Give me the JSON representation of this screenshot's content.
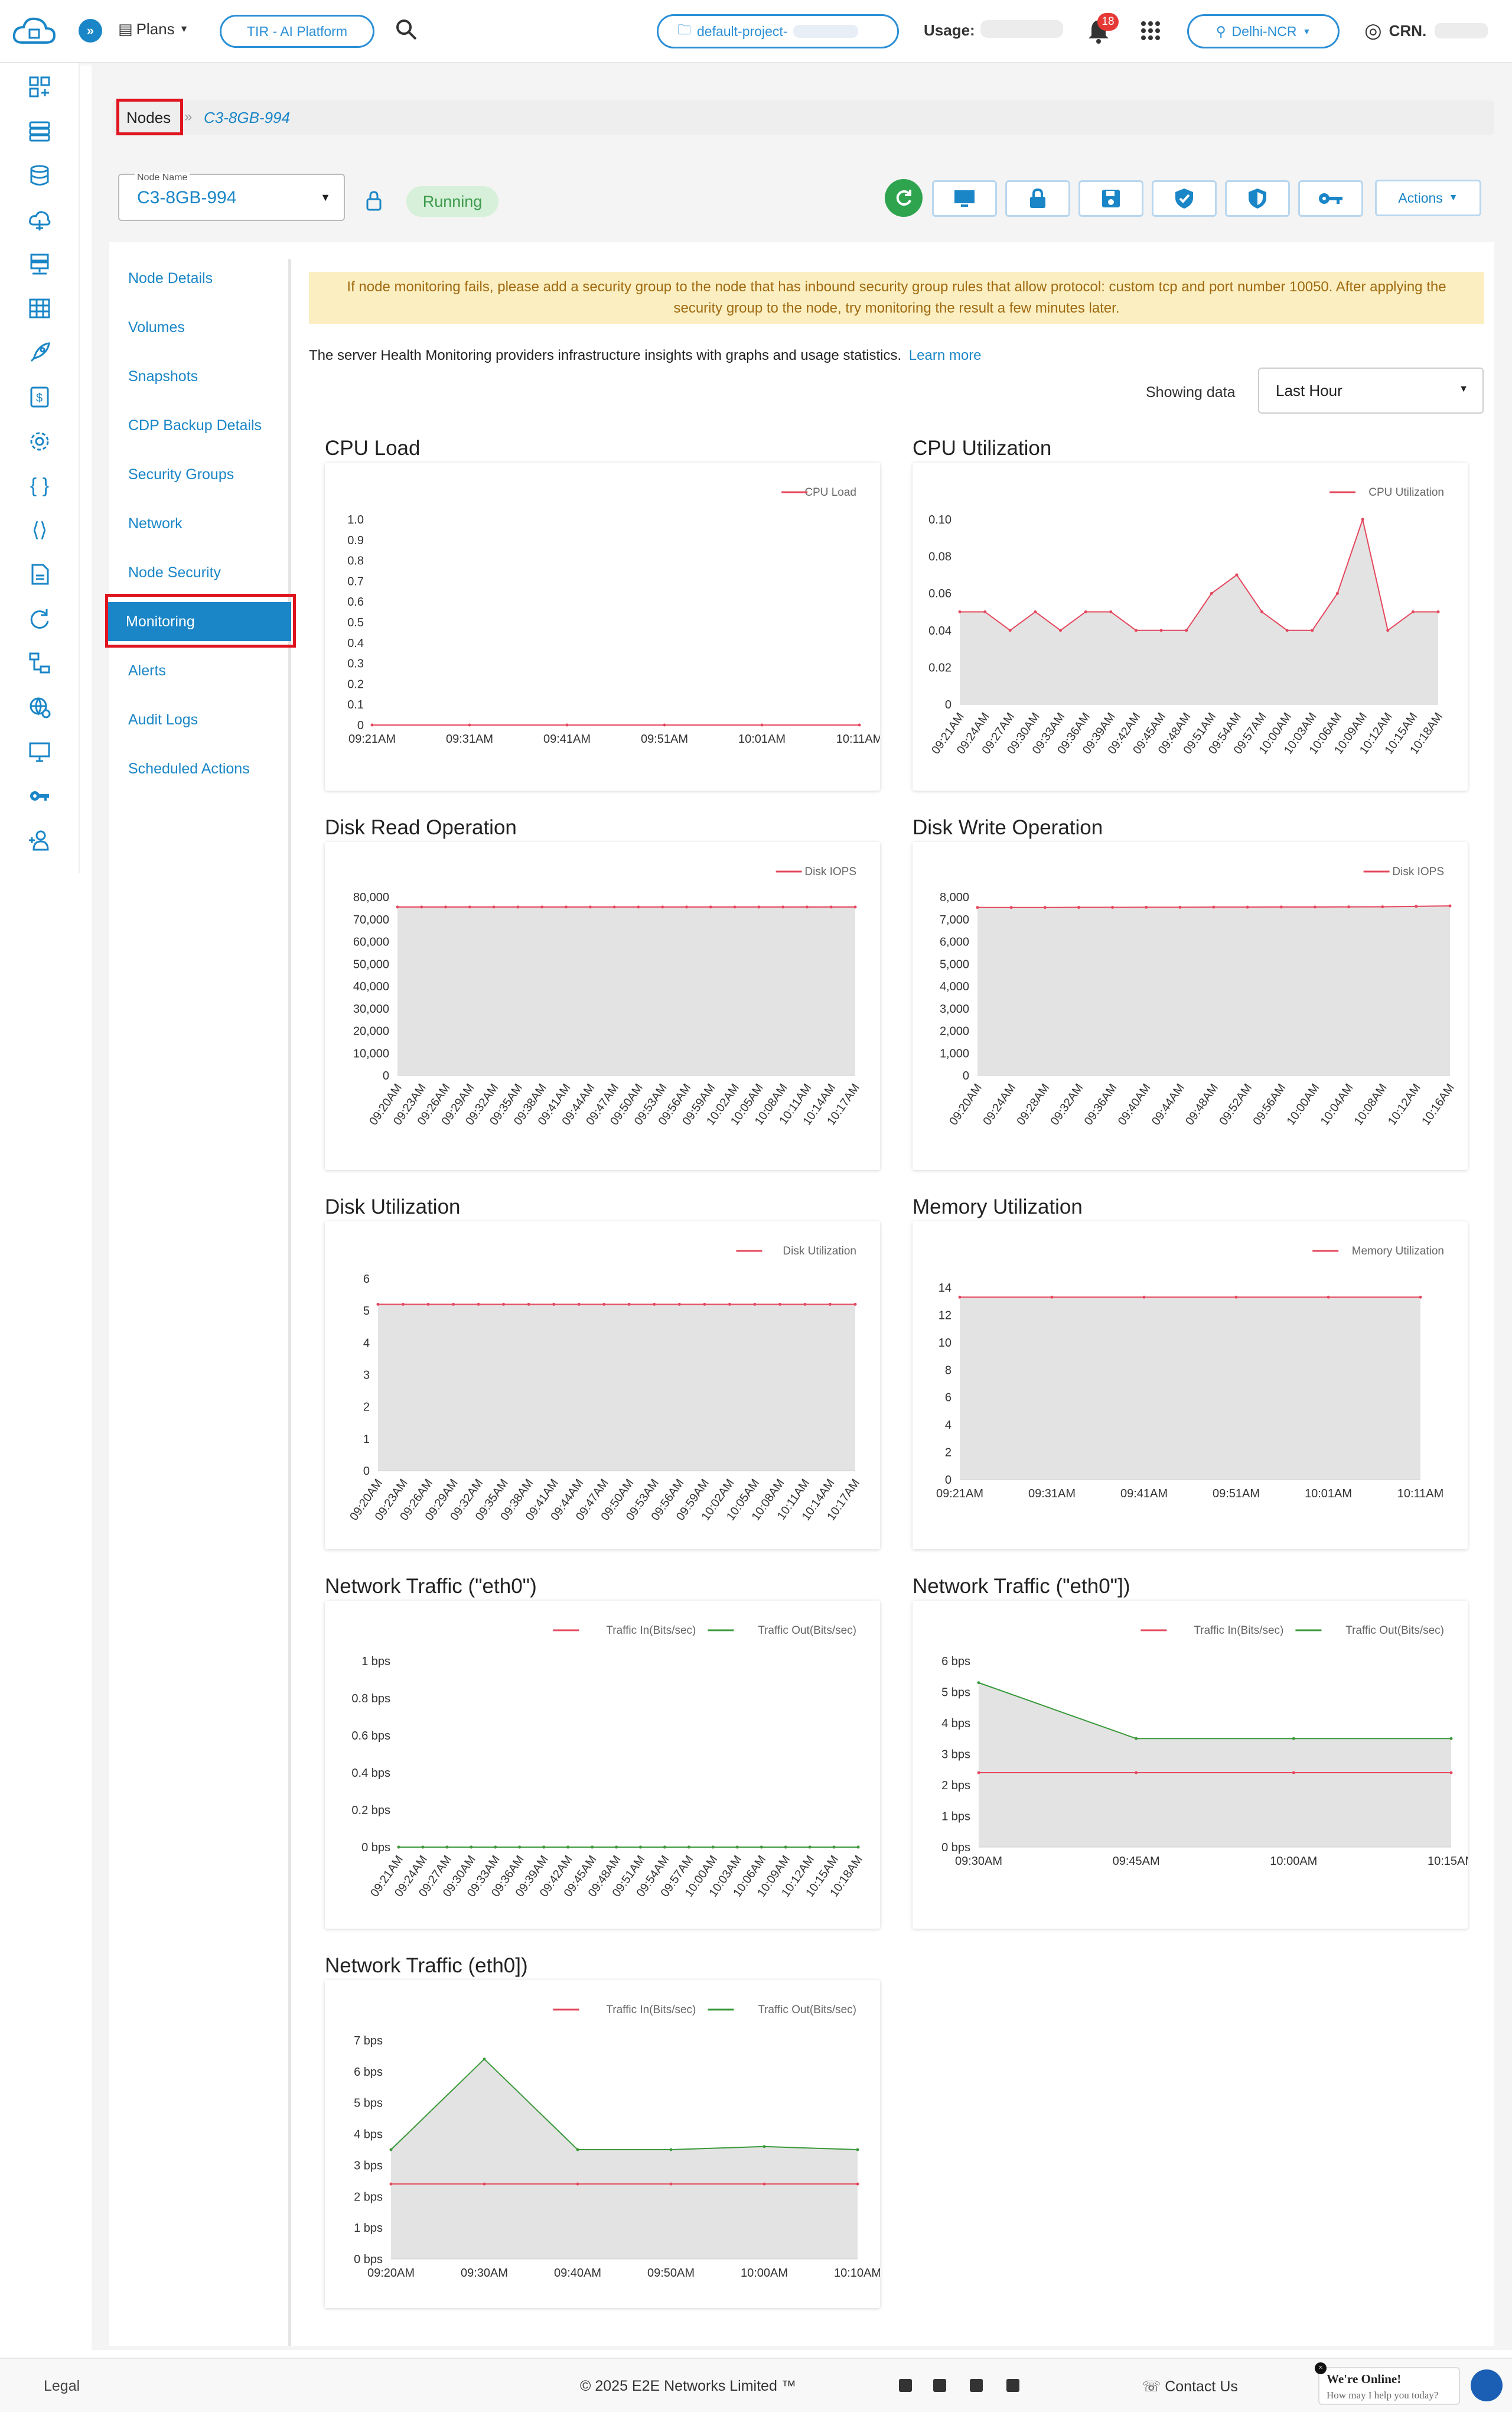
{
  "header": {
    "plans_label": "Plans",
    "tir_label": "TIR - AI Platform",
    "project_label": "default-project-",
    "usage_label": "Usage:",
    "notification_count": "18",
    "region_label": "Delhi-NCR",
    "account_label": "CRN."
  },
  "breadcrumb": {
    "root": "Nodes",
    "separator": "»",
    "current": "C3-8GB-994"
  },
  "node": {
    "field_label": "Node Name",
    "name": "C3-8GB-994",
    "status": "Running",
    "actions_label": "Actions"
  },
  "nav": {
    "items": [
      {
        "label": "Node Details"
      },
      {
        "label": "Volumes"
      },
      {
        "label": "Snapshots"
      },
      {
        "label": "CDP Backup Details"
      },
      {
        "label": "Security Groups"
      },
      {
        "label": "Network"
      },
      {
        "label": "Node Security"
      },
      {
        "label": "Monitoring"
      },
      {
        "label": "Alerts"
      },
      {
        "label": "Audit Logs"
      },
      {
        "label": "Scheduled Actions"
      }
    ],
    "active": "Monitoring"
  },
  "monitoring": {
    "warning": "If node monitoring fails, please add a security group to the node that has inbound security group rules that allow protocol: custom tcp and port number 10050. After applying the security group to the node, try monitoring the result a few minutes later.",
    "info_text": "The server Health Monitoring providers infrastructure insights with graphs and usage statistics.",
    "learn_more": "Learn more",
    "showing_label": "Showing data",
    "range_value": "Last Hour"
  },
  "colors": {
    "accent": "#1a86c7",
    "status_green": "#3c9a4c",
    "series_in": "#e5485e",
    "series_out": "#3a9a3a",
    "area_fill": "#e3e3e3",
    "warn_bg": "#fbefc2"
  },
  "chart_data": [
    {
      "title": "CPU Load",
      "type": "line",
      "legend": [
        "CPU Load"
      ],
      "x": [
        "09:21AM",
        "09:31AM",
        "09:41AM",
        "09:51AM",
        "10:01AM",
        "10:11AM"
      ],
      "yticks": [
        "1.0",
        "0.9",
        "0.8",
        "0.7",
        "0.6",
        "0.5",
        "0.4",
        "0.3",
        "0.2",
        "0.1",
        "0"
      ],
      "ylim": [
        0,
        1
      ],
      "series": [
        {
          "name": "CPU Load",
          "values": [
            0,
            0,
            0,
            0,
            0,
            0
          ]
        }
      ]
    },
    {
      "title": "CPU Utilization",
      "type": "area",
      "legend": [
        "CPU Utilization"
      ],
      "x": [
        "09:21AM",
        "09:24AM",
        "09:27AM",
        "09:30AM",
        "09:33AM",
        "09:36AM",
        "09:39AM",
        "09:42AM",
        "09:45AM",
        "09:48AM",
        "09:51AM",
        "09:54AM",
        "09:57AM",
        "10:00AM",
        "10:03AM",
        "10:06AM",
        "10:09AM",
        "10:12AM",
        "10:15AM",
        "10:18AM"
      ],
      "yticks": [
        "0.10",
        "0.08",
        "0.06",
        "0.04",
        "0.02",
        "0"
      ],
      "ylim": [
        0,
        0.1
      ],
      "series": [
        {
          "name": "CPU Utilization",
          "values": [
            0.05,
            0.05,
            0.04,
            0.05,
            0.04,
            0.05,
            0.05,
            0.04,
            0.04,
            0.04,
            0.06,
            0.07,
            0.05,
            0.04,
            0.04,
            0.06,
            0.1,
            0.04,
            0.05,
            0.05
          ]
        }
      ]
    },
    {
      "title": "Disk Read Operation",
      "type": "area",
      "legend": [
        "Disk IOPS"
      ],
      "x": [
        "09:20AM",
        "09:23AM",
        "09:26AM",
        "09:29AM",
        "09:32AM",
        "09:35AM",
        "09:38AM",
        "09:41AM",
        "09:44AM",
        "09:47AM",
        "09:50AM",
        "09:53AM",
        "09:56AM",
        "09:59AM",
        "10:02AM",
        "10:05AM",
        "10:08AM",
        "10:11AM",
        "10:14AM",
        "10:17AM"
      ],
      "yticks": [
        "80,000",
        "70,000",
        "60,000",
        "50,000",
        "40,000",
        "30,000",
        "20,000",
        "10,000",
        "0"
      ],
      "ylim": [
        0,
        80000
      ],
      "series": [
        {
          "name": "Disk IOPS",
          "values": [
            75500,
            75500,
            75500,
            75500,
            75500,
            75500,
            75500,
            75500,
            75500,
            75500,
            75500,
            75500,
            75500,
            75500,
            75500,
            75500,
            75500,
            75500,
            75500,
            75500
          ]
        }
      ]
    },
    {
      "title": "Disk Write Operation",
      "type": "area",
      "legend": [
        "Disk IOPS"
      ],
      "x": [
        "09:20AM",
        "09:24AM",
        "09:28AM",
        "09:32AM",
        "09:36AM",
        "09:40AM",
        "09:44AM",
        "09:48AM",
        "09:52AM",
        "09:56AM",
        "10:00AM",
        "10:04AM",
        "10:08AM",
        "10:12AM",
        "10:16AM"
      ],
      "yticks": [
        "8,000",
        "7,000",
        "6,000",
        "5,000",
        "4,000",
        "3,000",
        "2,000",
        "1,000",
        "0"
      ],
      "ylim": [
        0,
        8000
      ],
      "series": [
        {
          "name": "Disk IOPS",
          "values": [
            7530,
            7530,
            7530,
            7535,
            7535,
            7540,
            7540,
            7545,
            7545,
            7550,
            7550,
            7555,
            7560,
            7580,
            7600
          ]
        }
      ]
    },
    {
      "title": "Disk Utilization",
      "type": "area",
      "legend": [
        "Disk Utilization"
      ],
      "x": [
        "09:20AM",
        "09:23AM",
        "09:26AM",
        "09:29AM",
        "09:32AM",
        "09:35AM",
        "09:38AM",
        "09:41AM",
        "09:44AM",
        "09:47AM",
        "09:50AM",
        "09:53AM",
        "09:56AM",
        "09:59AM",
        "10:02AM",
        "10:05AM",
        "10:08AM",
        "10:11AM",
        "10:14AM",
        "10:17AM"
      ],
      "yticks": [
        "6",
        "5",
        "4",
        "3",
        "2",
        "1",
        "0"
      ],
      "ylim": [
        0,
        6
      ],
      "series": [
        {
          "name": "Disk Utilization",
          "values": [
            5.2,
            5.2,
            5.2,
            5.2,
            5.2,
            5.2,
            5.2,
            5.2,
            5.2,
            5.2,
            5.2,
            5.2,
            5.2,
            5.2,
            5.2,
            5.2,
            5.2,
            5.2,
            5.2,
            5.2
          ]
        }
      ]
    },
    {
      "title": "Memory Utilization",
      "type": "area",
      "legend": [
        "Memory Utilization"
      ],
      "x": [
        "09:21AM",
        "09:31AM",
        "09:41AM",
        "09:51AM",
        "10:01AM",
        "10:11AM"
      ],
      "yticks": [
        "14",
        "12",
        "10",
        "8",
        "6",
        "4",
        "2",
        "0"
      ],
      "ylim": [
        0,
        14
      ],
      "series": [
        {
          "name": "Memory Utilization",
          "values": [
            13.3,
            13.3,
            13.3,
            13.3,
            13.3,
            13.3
          ]
        }
      ]
    },
    {
      "title": "Network Traffic (\"eth0\")",
      "type": "line",
      "legend": [
        "Traffic In(Bits/sec)",
        "Traffic Out(Bits/sec)"
      ],
      "x": [
        "09:21AM",
        "09:24AM",
        "09:27AM",
        "09:30AM",
        "09:33AM",
        "09:36AM",
        "09:39AM",
        "09:42AM",
        "09:45AM",
        "09:48AM",
        "09:51AM",
        "09:54AM",
        "09:57AM",
        "10:00AM",
        "10:03AM",
        "10:06AM",
        "10:09AM",
        "10:12AM",
        "10:15AM",
        "10:18AM"
      ],
      "yticks": [
        "1 bps",
        "0.8 bps",
        "0.6 bps",
        "0.4 bps",
        "0.2 bps",
        "0 bps"
      ],
      "ylim": [
        0,
        1
      ],
      "series": [
        {
          "name": "Traffic In(Bits/sec)",
          "values": [
            0,
            0,
            0,
            0,
            0,
            0,
            0,
            0,
            0,
            0,
            0,
            0,
            0,
            0,
            0,
            0,
            0,
            0,
            0,
            0
          ]
        },
        {
          "name": "Traffic Out(Bits/sec)",
          "values": [
            0,
            0,
            0,
            0,
            0,
            0,
            0,
            0,
            0,
            0,
            0,
            0,
            0,
            0,
            0,
            0,
            0,
            0,
            0,
            0
          ]
        }
      ]
    },
    {
      "title": "Network Traffic (\"eth0\"])",
      "type": "area",
      "legend": [
        "Traffic In(Bits/sec)",
        "Traffic Out(Bits/sec)"
      ],
      "x": [
        "09:30AM",
        "09:45AM",
        "10:00AM",
        "10:15AM"
      ],
      "yticks": [
        "6 bps",
        "5 bps",
        "4 bps",
        "3 bps",
        "2 bps",
        "1 bps",
        "0 bps"
      ],
      "ylim": [
        0,
        6
      ],
      "series": [
        {
          "name": "Traffic In(Bits/sec)",
          "values": [
            2.4,
            2.4,
            2.4,
            2.4
          ]
        },
        {
          "name": "Traffic Out(Bits/sec)",
          "values": [
            5.3,
            3.5,
            3.5,
            3.5
          ]
        }
      ]
    },
    {
      "title": "Network Traffic (eth0])",
      "type": "area",
      "legend": [
        "Traffic In(Bits/sec)",
        "Traffic Out(Bits/sec)"
      ],
      "x": [
        "09:20AM",
        "09:30AM",
        "09:40AM",
        "09:50AM",
        "10:00AM",
        "10:10AM"
      ],
      "yticks": [
        "7 bps",
        "6 bps",
        "5 bps",
        "4 bps",
        "3 bps",
        "2 bps",
        "1 bps",
        "0 bps"
      ],
      "ylim": [
        0,
        7
      ],
      "series": [
        {
          "name": "Traffic In(Bits/sec)",
          "values": [
            2.4,
            2.4,
            2.4,
            2.4,
            2.4,
            2.4
          ]
        },
        {
          "name": "Traffic Out(Bits/sec)",
          "values": [
            3.5,
            6.4,
            3.5,
            3.5,
            3.6,
            3.5
          ]
        }
      ]
    }
  ],
  "footer": {
    "legal": "Legal",
    "copyright": "© 2025 E2E Networks Limited ™",
    "contact": "Contact Us",
    "chat_title": "We're Online!",
    "chat_sub": "How may I help you today?"
  }
}
